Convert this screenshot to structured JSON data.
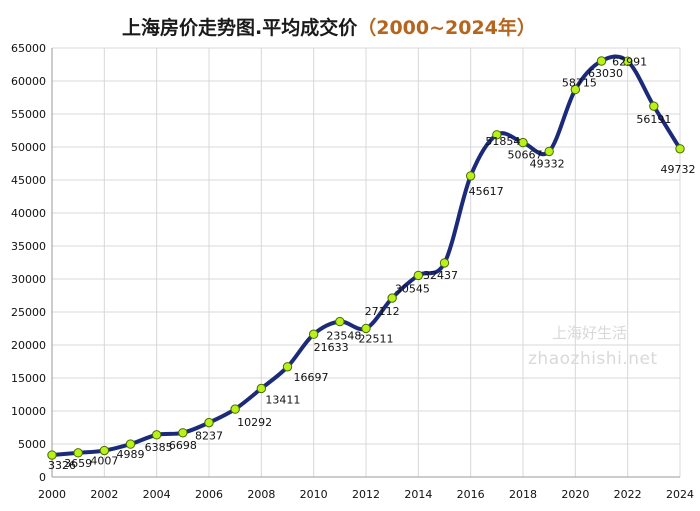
{
  "title": {
    "main": "上海房价走势图.平均成交价",
    "range": "（2000~2024年）"
  },
  "watermark": {
    "line1": "上海好生活",
    "line2": "zhaozhishi.net"
  },
  "colors": {
    "line": "#1c2a7a",
    "marker_fill": "#b9f21a",
    "marker_stroke": "#4a6a00",
    "grid": "#d8d8d8",
    "title_accent": "#b5651d"
  },
  "chart_data": {
    "type": "line",
    "title": "上海房价走势图.平均成交价（2000~2024年）",
    "xlabel": "",
    "ylabel": "",
    "x": [
      2000,
      2001,
      2002,
      2003,
      2004,
      2005,
      2006,
      2007,
      2008,
      2009,
      2010,
      2011,
      2012,
      2013,
      2014,
      2015,
      2016,
      2017,
      2018,
      2019,
      2020,
      2021,
      2022,
      2023,
      2024
    ],
    "series": [
      {
        "values": [
          3326,
          3659,
          4007,
          4989,
          6385,
          6698,
          8237,
          10292,
          13411,
          16697,
          21633,
          23548,
          22511,
          27112,
          30545,
          32437,
          45617,
          51854,
          50667,
          49332,
          58715,
          63030,
          62991,
          56191,
          49732
        ]
      }
    ],
    "xlim": [
      2000,
      2024
    ],
    "ylim": [
      0,
      65000
    ],
    "x_ticks": [
      "2000",
      "2002",
      "2004",
      "2006",
      "2008",
      "2010",
      "2012",
      "2014",
      "2016",
      "2018",
      "2020",
      "2022",
      "2024"
    ],
    "y_ticks": [
      "0",
      "5000",
      "10000",
      "15000",
      "20000",
      "25000",
      "30000",
      "35000",
      "40000",
      "45000",
      "50000",
      "55000",
      "60000",
      "65000"
    ],
    "grid": true,
    "legend": "none"
  }
}
